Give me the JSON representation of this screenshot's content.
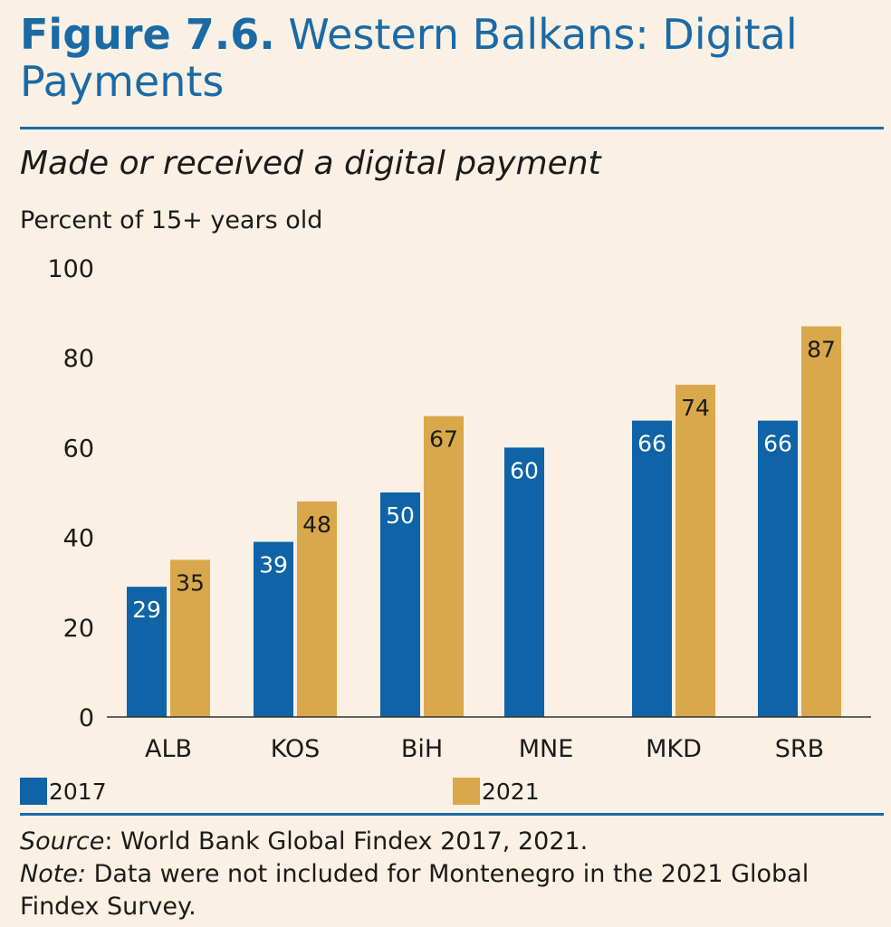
{
  "header": {
    "figure_number": "Figure 7.6.",
    "figure_title": "Western Balkans: Digital Payments"
  },
  "chart_data": {
    "type": "bar",
    "title": "Made or received a digital payment",
    "ylabel": "Percent of 15+ years old",
    "xlabel": "",
    "categories": [
      "ALB",
      "KOS",
      "BiH",
      "MNE",
      "MKD",
      "SRB"
    ],
    "series": [
      {
        "name": "2017",
        "color": "#0f63a6",
        "values": [
          29,
          39,
          50,
          60,
          66,
          66
        ]
      },
      {
        "name": "2021",
        "color": "#d9a84a",
        "values": [
          35,
          48,
          67,
          null,
          74,
          87
        ]
      }
    ],
    "ylim": [
      0,
      100
    ],
    "yticks": [
      0,
      20,
      40,
      60,
      80,
      100
    ],
    "grid": false,
    "legend": "bottom"
  },
  "footer": {
    "source_label": "Source",
    "source_text": ": World Bank Global Findex 2017, 2021.",
    "note_label": "Note:",
    "note_text": " Data were not included for Montenegro in the 2021 Global Findex Survey."
  }
}
